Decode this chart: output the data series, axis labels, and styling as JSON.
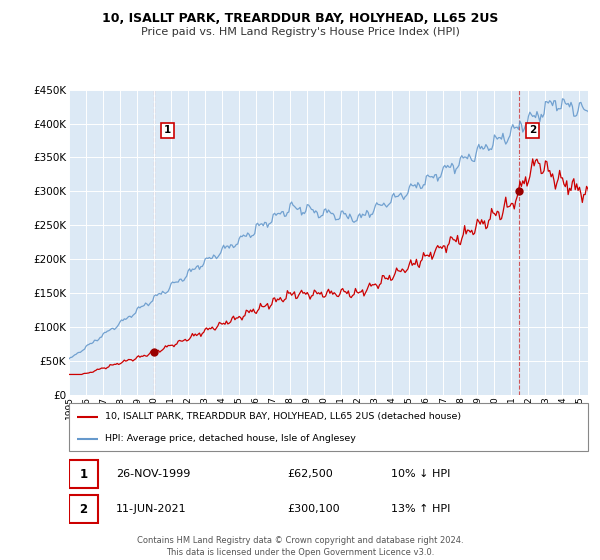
{
  "title": "10, ISALLT PARK, TREARDDUR BAY, HOLYHEAD, LL65 2US",
  "subtitle": "Price paid vs. HM Land Registry's House Price Index (HPI)",
  "background_color": "#ffffff",
  "plot_bg_color": "#dce9f5",
  "red_line_color": "#cc0000",
  "blue_line_color": "#6699cc",
  "sale1_date": "26-NOV-1999",
  "sale1_price": "£62,500",
  "sale1_hpi": "10% ↓ HPI",
  "sale2_date": "11-JUN-2021",
  "sale2_price": "£300,100",
  "sale2_hpi": "13% ↑ HPI",
  "legend_red": "10, ISALLT PARK, TREARDDUR BAY, HOLYHEAD, LL65 2US (detached house)",
  "legend_blue": "HPI: Average price, detached house, Isle of Anglesey",
  "footer": "Contains HM Land Registry data © Crown copyright and database right 2024.\nThis data is licensed under the Open Government Licence v3.0.",
  "ylim": [
    0,
    450000
  ],
  "yticks": [
    0,
    50000,
    100000,
    150000,
    200000,
    250000,
    300000,
    350000,
    400000,
    450000
  ],
  "ytick_labels": [
    "£0",
    "£50K",
    "£100K",
    "£150K",
    "£200K",
    "£250K",
    "£300K",
    "£350K",
    "£400K",
    "£450K"
  ],
  "sale1_x": 2000.0,
  "sale1_y": 62500,
  "sale2_x": 2021.45,
  "sale2_y": 300100,
  "xlim_start": 1995,
  "xlim_end": 2025.5
}
